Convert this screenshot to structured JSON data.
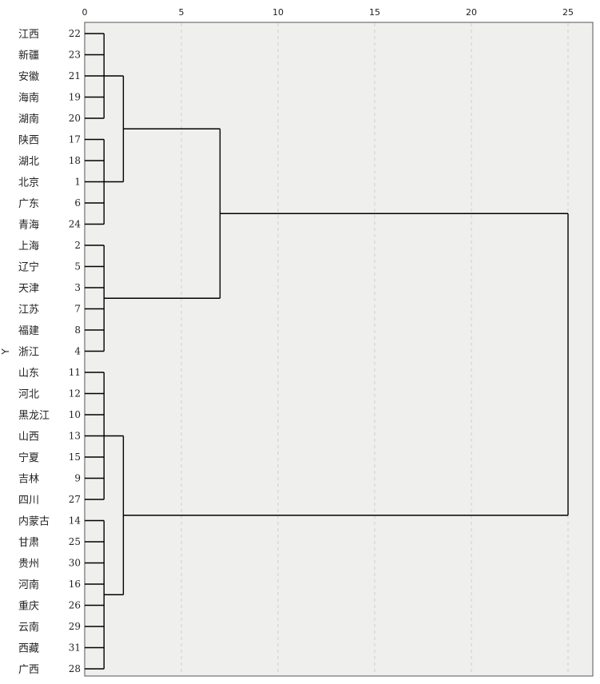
{
  "chart_data": {
    "type": "dendrogram",
    "ylabel": "Y",
    "x_ticks": [
      0,
      5,
      10,
      15,
      20,
      25
    ],
    "xlim": [
      0,
      26.3
    ],
    "grid": "dashed vertical",
    "colors": {
      "plot_bg": "#efefed",
      "grid": "#cfcfcf",
      "line": "#000000",
      "border": "#555555"
    },
    "leaves": [
      {
        "name": "江西",
        "id": "22"
      },
      {
        "name": "新疆",
        "id": "23"
      },
      {
        "name": "安徽",
        "id": "21"
      },
      {
        "name": "海南",
        "id": "19"
      },
      {
        "name": "湖南",
        "id": "20"
      },
      {
        "name": "陕西",
        "id": "17"
      },
      {
        "name": "湖北",
        "id": "18"
      },
      {
        "name": "北京",
        "id": "1"
      },
      {
        "name": "广东",
        "id": "6"
      },
      {
        "name": "青海",
        "id": "24"
      },
      {
        "name": "上海",
        "id": "2"
      },
      {
        "name": "辽宁",
        "id": "5"
      },
      {
        "name": "天津",
        "id": "3"
      },
      {
        "name": "江苏",
        "id": "7"
      },
      {
        "name": "福建",
        "id": "8"
      },
      {
        "name": "浙江",
        "id": "4"
      },
      {
        "name": "山东",
        "id": "11"
      },
      {
        "name": "河北",
        "id": "12"
      },
      {
        "name": "黑龙江",
        "id": "10"
      },
      {
        "name": "山西",
        "id": "13"
      },
      {
        "name": "宁夏",
        "id": "15"
      },
      {
        "name": "吉林",
        "id": "9"
      },
      {
        "name": "四川",
        "id": "27"
      },
      {
        "name": "内蒙古",
        "id": "14"
      },
      {
        "name": "甘肃",
        "id": "25"
      },
      {
        "name": "贵州",
        "id": "30"
      },
      {
        "name": "河南",
        "id": "16"
      },
      {
        "name": "重庆",
        "id": "26"
      },
      {
        "name": "云南",
        "id": "29"
      },
      {
        "name": "西藏",
        "id": "31"
      },
      {
        "name": "广西",
        "id": "28"
      }
    ],
    "merges": [
      {
        "members": [
          0,
          1,
          2,
          3,
          4
        ],
        "height": 1
      },
      {
        "members": [
          5,
          6,
          7,
          8,
          9
        ],
        "height": 1
      },
      {
        "members": [
          10,
          11,
          12,
          13,
          14,
          15
        ],
        "height": 1
      },
      {
        "members": [
          16,
          17,
          18,
          19,
          20,
          21,
          22
        ],
        "height": 1
      },
      {
        "members": [
          23,
          24,
          25,
          26,
          27,
          28,
          29,
          30
        ],
        "height": 1
      },
      {
        "members": [
          0,
          1,
          2,
          3,
          4,
          5,
          6,
          7,
          8,
          9
        ],
        "height": 2
      },
      {
        "members": [
          16,
          17,
          18,
          19,
          20,
          21,
          22,
          23,
          24,
          25,
          26,
          27,
          28,
          29,
          30
        ],
        "height": 2
      },
      {
        "members": [
          0,
          1,
          2,
          3,
          4,
          5,
          6,
          7,
          8,
          9,
          10,
          11,
          12,
          13,
          14,
          15
        ],
        "height": 7
      },
      {
        "members": [
          0,
          1,
          2,
          3,
          4,
          5,
          6,
          7,
          8,
          9,
          10,
          11,
          12,
          13,
          14,
          15,
          16,
          17,
          18,
          19,
          20,
          21,
          22,
          23,
          24,
          25,
          26,
          27,
          28,
          29,
          30
        ],
        "height": 25
      }
    ]
  }
}
